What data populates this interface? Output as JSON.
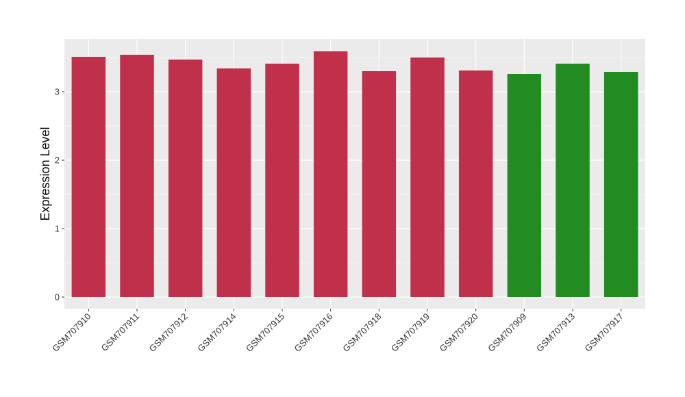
{
  "chart_data": {
    "type": "bar",
    "ylabel": "Expression Level",
    "xlabel": "",
    "categories": [
      "GSM707910",
      "GSM707911",
      "GSM707912",
      "GSM707914",
      "GSM707915",
      "GSM707916",
      "GSM707918",
      "GSM707919",
      "GSM707920",
      "GSM707909",
      "GSM707913",
      "GSM707917"
    ],
    "values": [
      3.51,
      3.54,
      3.47,
      3.34,
      3.41,
      3.59,
      3.3,
      3.5,
      3.31,
      3.26,
      3.41,
      3.29
    ],
    "bar_colors": [
      "#C0304A",
      "#C0304A",
      "#C0304A",
      "#C0304A",
      "#C0304A",
      "#C0304A",
      "#C0304A",
      "#C0304A",
      "#C0304A",
      "#228B22",
      "#228B22",
      "#228B22"
    ],
    "ylim": [
      -0.17,
      3.77
    ],
    "yticks": [
      0,
      1,
      2,
      3
    ],
    "grid": true,
    "panel_background": "#EBEBEB",
    "grid_color": "#FFFFFF"
  }
}
